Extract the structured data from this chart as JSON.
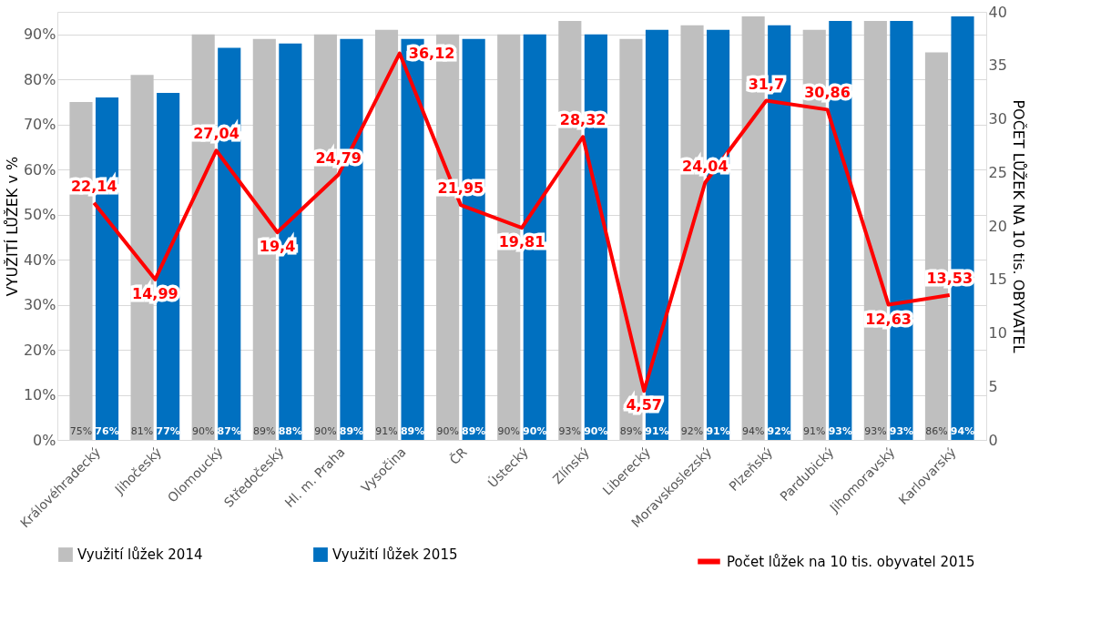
{
  "chart_data": {
    "type": "bar",
    "xlabel": null,
    "ylabel": "VYUŽITÍ LŮŽEK v %",
    "y2label": "POČET LŮŽEK NA 10 tis. OBYVATEL",
    "categories": [
      "Královéhradecký",
      "Jihočeský",
      "Olomoucký",
      "Středočeský",
      "Hl. m. Praha",
      "Vysočina",
      "ČR",
      "Ústecký",
      "Zlínský",
      "Liberecký",
      "Moravskoslezský",
      "Plzeňský",
      "Pardubický",
      "Jihomoravský",
      "Karlovarský"
    ],
    "series": [
      {
        "name": "Využití lůžek 2014",
        "color": "#bfbfbf",
        "values": [
          75,
          81,
          90,
          89,
          90,
          91,
          90,
          90,
          93,
          89,
          92,
          94,
          91,
          93,
          86
        ],
        "value_labels": [
          "75%",
          "81%",
          "90%",
          "89%",
          "90%",
          "91%",
          "90%",
          "90%",
          "93%",
          "89%",
          "92%",
          "94%",
          "91%",
          "93%",
          "86%"
        ]
      },
      {
        "name": "Využití lůžek 2015",
        "color": "#0070c0",
        "values": [
          76,
          77,
          87,
          88,
          89,
          89,
          89,
          90,
          90,
          91,
          91,
          92,
          93,
          93,
          94
        ],
        "value_labels": [
          "76%",
          "77%",
          "87%",
          "88%",
          "89%",
          "89%",
          "89%",
          "90%",
          "90%",
          "91%",
          "91%",
          "92%",
          "93%",
          "93%",
          "94%"
        ]
      },
      {
        "name": "Počet lůžek na 10 tis. obyvatel 2015",
        "type": "line",
        "axis": "y2",
        "color": "#ff0000",
        "values": [
          22.14,
          14.99,
          27.04,
          19.4,
          24.79,
          36.12,
          21.95,
          19.81,
          28.32,
          4.57,
          24.04,
          31.7,
          30.86,
          12.63,
          13.53
        ],
        "value_labels": [
          "22,14",
          "14,99",
          "27,04",
          "19,4",
          "24,79",
          "36,12",
          "21,95",
          "19,81",
          "28,32",
          "4,57",
          "24,04",
          "31,7",
          "30,86",
          "12,63",
          "13,53"
        ]
      }
    ],
    "ylim": [
      0,
      95
    ],
    "yticks": [
      {
        "value": 0,
        "label": "0%"
      },
      {
        "value": 10,
        "label": "10%"
      },
      {
        "value": 20,
        "label": "20%"
      },
      {
        "value": 30,
        "label": "30%"
      },
      {
        "value": 40,
        "label": "40%"
      },
      {
        "value": 50,
        "label": "50%"
      },
      {
        "value": 60,
        "label": "60%"
      },
      {
        "value": 70,
        "label": "70%"
      },
      {
        "value": 80,
        "label": "80%"
      },
      {
        "value": 90,
        "label": "90%"
      }
    ],
    "y2lim": [
      0,
      40
    ],
    "y2ticks": [
      0,
      5,
      10,
      15,
      20,
      25,
      30,
      35,
      40
    ],
    "grid": "y",
    "legend": "bottom"
  }
}
